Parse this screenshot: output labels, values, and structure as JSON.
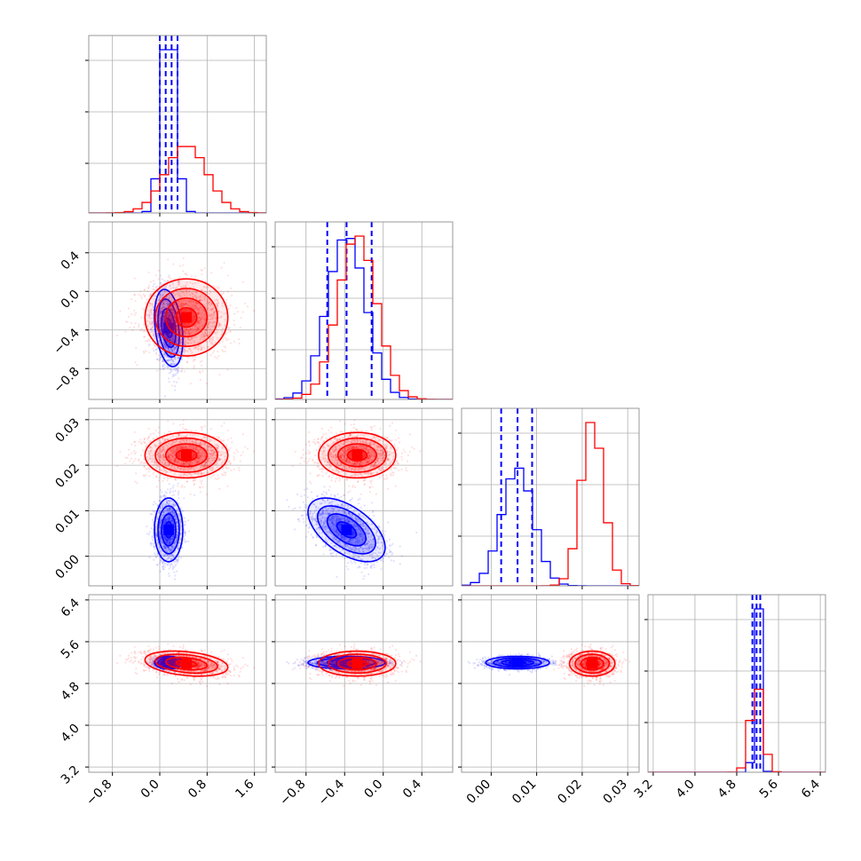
{
  "figure": {
    "type": "corner-plot",
    "grid": true
  },
  "colors": {
    "blue": "#0000ff",
    "red": "#ff0000"
  },
  "chart_data": {
    "type": "scatter",
    "title": "",
    "params": [
      {
        "range": [
          -1.2,
          1.8
        ],
        "ticks": [
          -0.8,
          0.0,
          0.8,
          1.6
        ],
        "tick_labels": [
          "−0.8",
          "0.0",
          "0.8",
          "1.6"
        ]
      },
      {
        "range": [
          -1.12,
          0.72
        ],
        "ticks": [
          -0.8,
          -0.4,
          0.0,
          0.4
        ],
        "tick_labels": [
          "−0.8",
          "−0.4",
          "0.0",
          "0.4"
        ]
      },
      {
        "range": [
          -0.0065,
          0.0325
        ],
        "ticks": [
          0.0,
          0.01,
          0.02,
          0.03
        ],
        "tick_labels": [
          "0.00",
          "0.01",
          "0.02",
          "0.03"
        ]
      },
      {
        "range": [
          3.1,
          6.5
        ],
        "ticks": [
          3.2,
          4.0,
          4.8,
          5.6,
          6.4
        ],
        "tick_labels": [
          "3.2",
          "4.0",
          "4.8",
          "5.6",
          "6.4"
        ]
      }
    ],
    "series": [
      {
        "color": "#0000ff",
        "mean": [
          0.15,
          -0.38,
          0.0058,
          5.2
        ],
        "std": [
          0.12,
          0.2,
          0.0035,
          0.06
        ],
        "quantiles": [
          [
            0.0,
            0.1,
            0.2,
            0.3
          ],
          [
            -0.58,
            -0.38,
            -0.12
          ],
          [
            0.0022,
            0.0058,
            0.009
          ],
          [
            5.1,
            5.18,
            5.25
          ]
        ],
        "corr": [
          [
            0,
            1,
            -0.3
          ],
          [
            1,
            2,
            -0.55
          ],
          [
            0,
            2,
            0
          ],
          [
            0,
            3,
            0
          ],
          [
            1,
            3,
            0
          ],
          [
            2,
            3,
            0
          ]
        ]
      },
      {
        "color": "#ff0000",
        "mean": [
          0.45,
          -0.27,
          0.0222,
          5.18
        ],
        "std": [
          0.35,
          0.2,
          0.0025,
          0.12
        ],
        "quantiles": [],
        "corr": [
          [
            0,
            3,
            -0.3
          ],
          [
            1,
            2,
            0
          ],
          [
            0,
            1,
            0
          ],
          [
            0,
            2,
            0
          ],
          [
            1,
            3,
            0
          ],
          [
            2,
            3,
            0
          ]
        ]
      }
    ]
  }
}
